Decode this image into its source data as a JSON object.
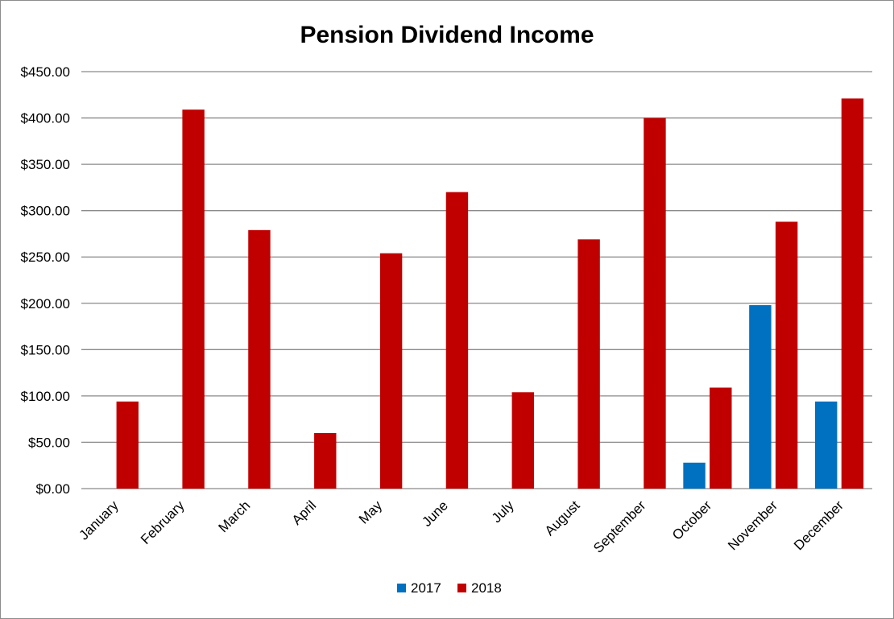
{
  "chart_data": {
    "type": "bar",
    "title": "Pension Dividend Income",
    "xlabel": "",
    "ylabel": "",
    "categories": [
      "January",
      "February",
      "March",
      "April",
      "May",
      "June",
      "July",
      "August",
      "September",
      "October",
      "November",
      "December"
    ],
    "series": [
      {
        "name": "2017",
        "color": "#0070c0",
        "values": [
          0,
          0,
          0,
          0,
          0,
          0,
          0,
          0,
          0,
          28,
          198,
          94
        ]
      },
      {
        "name": "2018",
        "color": "#c00000",
        "values": [
          94,
          409,
          279,
          60,
          254,
          320,
          104,
          269,
          400,
          109,
          288,
          421
        ]
      }
    ],
    "ylim": [
      0,
      450
    ],
    "yticks": [
      0,
      50,
      100,
      150,
      200,
      250,
      300,
      350,
      400,
      450
    ],
    "ytick_labels": [
      "$0.00",
      "$50.00",
      "$100.00",
      "$150.00",
      "$200.00",
      "$250.00",
      "$300.00",
      "$350.00",
      "$400.00",
      "$450.00"
    ],
    "grid": true,
    "legend_position": "bottom"
  }
}
